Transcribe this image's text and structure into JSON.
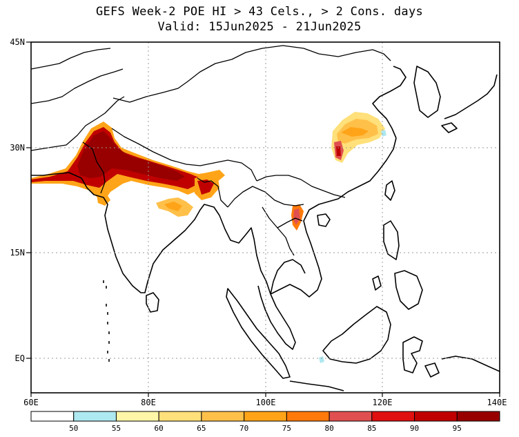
{
  "title": {
    "line1": "GEFS Week-2 POE HI > 43 Cels., > 2 Cons. days",
    "line2": "Valid: 15Jun2025 - 21Jun2025"
  },
  "map": {
    "lon_range": [
      60,
      140
    ],
    "lat_range": [
      -6,
      45
    ],
    "lat_labels": [
      {
        "lat": 45,
        "text": "45N"
      },
      {
        "lat": 30,
        "text": "30N"
      },
      {
        "lat": 15,
        "text": "15N"
      },
      {
        "lat": 0,
        "text": "EQ"
      }
    ],
    "lon_labels": [
      {
        "lon": 60,
        "text": "60E"
      },
      {
        "lon": 80,
        "text": "80E"
      },
      {
        "lon": 100,
        "text": "100E"
      },
      {
        "lon": 120,
        "text": "120E"
      },
      {
        "lon": 140,
        "text": "140E"
      }
    ]
  },
  "colorbar": {
    "colors": [
      "#ffffff",
      "#aee8f0",
      "#fff6a8",
      "#ffe07a",
      "#ffc04a",
      "#ffa418",
      "#ff7a0a",
      "#e05050",
      "#e01010",
      "#c00000",
      "#980000"
    ],
    "labels": [
      "50",
      "55",
      "60",
      "65",
      "70",
      "75",
      "80",
      "85",
      "90",
      "95"
    ]
  }
}
